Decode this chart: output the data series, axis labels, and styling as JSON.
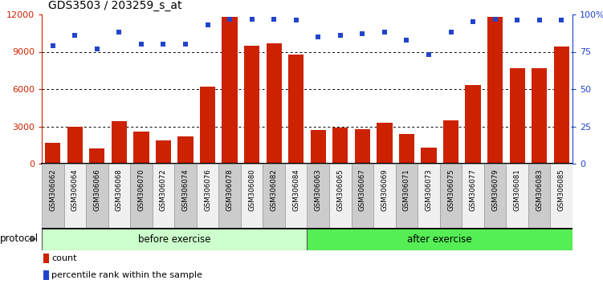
{
  "title": "GDS3503 / 203259_s_at",
  "categories": [
    "GSM306062",
    "GSM306064",
    "GSM306066",
    "GSM306068",
    "GSM306070",
    "GSM306072",
    "GSM306074",
    "GSM306076",
    "GSM306078",
    "GSM306080",
    "GSM306082",
    "GSM306084",
    "GSM306063",
    "GSM306065",
    "GSM306067",
    "GSM306069",
    "GSM306071",
    "GSM306073",
    "GSM306075",
    "GSM306077",
    "GSM306079",
    "GSM306081",
    "GSM306083",
    "GSM306085"
  ],
  "counts": [
    1700,
    3000,
    1200,
    3400,
    2600,
    1900,
    2200,
    6200,
    11800,
    9500,
    9700,
    8800,
    2700,
    2900,
    2800,
    3300,
    2400,
    1300,
    3500,
    6300,
    11800,
    7700,
    7700,
    9400
  ],
  "percentile_ranks": [
    79,
    86,
    77,
    88,
    80,
    80,
    80,
    93,
    97,
    97,
    97,
    96,
    85,
    86,
    87,
    88,
    83,
    73,
    88,
    95,
    97,
    96,
    96,
    96
  ],
  "before_exercise_count": 12,
  "after_exercise_count": 12,
  "bar_color": "#cc2200",
  "dot_color": "#2244cc",
  "before_color": "#ccffcc",
  "after_color": "#55ee55",
  "left_axis_color": "#cc2200",
  "right_axis_color": "#2244cc",
  "tick_bg_odd": "#cccccc",
  "tick_bg_even": "#e8e8e8",
  "ylim_left": [
    0,
    12000
  ],
  "ylim_right": [
    0,
    100
  ],
  "yticks_left": [
    0,
    3000,
    6000,
    9000,
    12000
  ],
  "ytick_labels_left": [
    "0",
    "3000",
    "6000",
    "9000",
    "12000"
  ],
  "yticks_right": [
    0,
    25,
    50,
    75,
    100
  ],
  "ytick_labels_right": [
    "0",
    "25",
    "50",
    "75",
    "100%"
  ],
  "protocol_label": "protocol",
  "before_label": "before exercise",
  "after_label": "after exercise",
  "legend_count_label": "count",
  "legend_percentile_label": "percentile rank within the sample"
}
